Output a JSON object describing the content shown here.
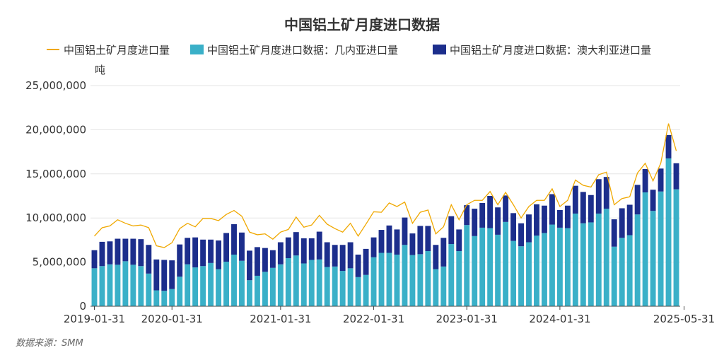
{
  "chart_data": {
    "type": "bar",
    "title": "中国铝土矿月度进口数据",
    "ylabel": "吨",
    "ylim": [
      0,
      25000000
    ],
    "yticks": [
      "0",
      "5,000,000",
      "10,000,000",
      "15,000,000",
      "20,000,000",
      "25,000,000"
    ],
    "x_tick_labels": [
      "2019-01-31",
      "2020-01-31",
      "2021-01-31",
      "2022-01-31",
      "2023-01-31",
      "2024-01-31",
      "2025-05-31"
    ],
    "x_tick_indices": [
      0,
      10,
      24,
      36,
      48,
      60,
      76
    ],
    "grid": true,
    "legend_placement": "top",
    "bars_stacked": true,
    "colors": {
      "total": "#f0a800",
      "guinea": "#3ab0c8",
      "australia": "#1c2e8c"
    },
    "series": [
      {
        "name": "中国铝土矿月度进口量",
        "type": "line",
        "values": [
          7950000,
          8900000,
          9100000,
          9800000,
          9400000,
          9100000,
          9200000,
          8900000,
          6850000,
          6650000,
          7200000,
          8800000,
          9400000,
          9000000,
          9950000,
          9950000,
          9700000,
          10400000,
          10850000,
          10200000,
          8400000,
          8100000,
          8200000,
          7600000,
          8400000,
          8700000,
          10100000,
          8950000,
          9200000,
          10300000,
          9300000,
          8800000,
          8400000,
          9400000,
          7950000,
          9300000,
          10700000,
          10650000,
          11700000,
          11300000,
          11800000,
          9400000,
          10650000,
          10900000,
          8200000,
          9000000,
          11500000,
          9800000,
          11500000,
          12000000,
          12000000,
          13000000,
          11500000,
          12900000,
          11500000,
          10000000,
          11300000,
          12000000,
          12000000,
          13300000,
          11300000,
          12000000,
          14300000,
          13700000,
          13500000,
          14900000,
          15200000,
          11500000,
          12200000,
          12400000,
          15100000,
          16200000,
          14200000,
          16200000,
          20700000,
          17600000
        ]
      },
      {
        "name": "中国铝土矿月度进口数据：几内亚进口量",
        "type": "bar",
        "values": [
          4300000,
          4550000,
          4750000,
          4700000,
          5100000,
          4700000,
          4550000,
          3700000,
          1800000,
          1750000,
          1950000,
          3350000,
          4750000,
          4400000,
          4550000,
          4900000,
          4200000,
          5050000,
          5850000,
          5150000,
          2950000,
          3450000,
          3900000,
          4350000,
          4750000,
          5450000,
          5750000,
          4850000,
          5250000,
          5300000,
          4450000,
          4500000,
          4000000,
          4300000,
          3300000,
          3550000,
          5550000,
          6050000,
          6050000,
          5850000,
          6950000,
          5800000,
          5900000,
          6250000,
          4200000,
          4500000,
          7050000,
          6250000,
          9200000,
          7950000,
          8900000,
          8850000,
          8100000,
          9550000,
          7400000,
          6800000,
          7250000,
          8000000,
          8300000,
          9250000,
          8900000,
          8850000,
          10500000,
          9400000,
          9500000,
          10500000,
          11050000,
          6750000,
          7750000,
          8050000,
          10400000,
          12900000,
          10800000,
          13000000,
          16750000,
          13250000
        ]
      },
      {
        "name": "中国铝土矿月度进口数据：澳大利亚进口量",
        "type": "bar",
        "values": [
          2050000,
          2750000,
          2600000,
          2950000,
          2550000,
          2950000,
          3050000,
          3250000,
          3500000,
          3500000,
          3250000,
          3650000,
          3000000,
          3400000,
          3000000,
          2650000,
          3250000,
          3250000,
          3450000,
          3200000,
          3350000,
          3250000,
          2700000,
          2000000,
          2500000,
          2350000,
          2650000,
          2850000,
          2450000,
          3150000,
          2800000,
          2450000,
          2950000,
          2950000,
          2550000,
          2950000,
          2250000,
          2600000,
          3100000,
          2850000,
          3100000,
          2450000,
          3200000,
          2850000,
          2750000,
          3250000,
          3150000,
          2450000,
          2250000,
          3100000,
          2800000,
          3650000,
          3100000,
          3000000,
          3150000,
          2600000,
          3150000,
          3550000,
          3100000,
          3450000,
          2000000,
          2550000,
          3150000,
          3550000,
          3100000,
          3900000,
          3600000,
          3100000,
          3350000,
          3450000,
          3350000,
          2650000,
          2400000,
          2600000,
          2650000,
          2950000
        ]
      }
    ]
  },
  "source": "数据来源：SMM"
}
